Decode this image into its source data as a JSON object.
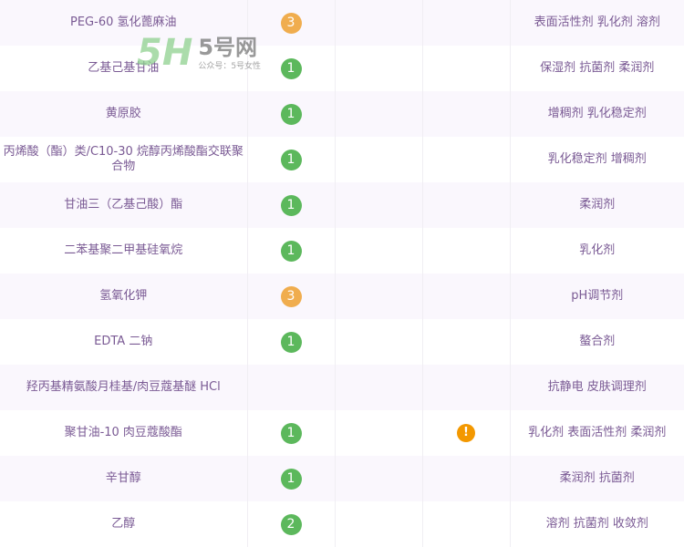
{
  "colors": {
    "score_1": "#5cb85c",
    "score_2": "#5cb85c",
    "score_3": "#f0ad4e",
    "warning": "#f39800",
    "text": "#7a5a94"
  },
  "watermark": {
    "logo": "5H",
    "site": "5号网",
    "sub": "公众号：5号女性"
  },
  "rows": [
    {
      "name": "PEG-60 氢化蓖麻油",
      "score": "3",
      "warn": false,
      "use": "表面活性剂 乳化剂 溶剂"
    },
    {
      "name": "乙基己基甘油",
      "score": "1",
      "warn": false,
      "use": "保湿剂 抗菌剂 柔润剂"
    },
    {
      "name": "黄原胶",
      "score": "1",
      "warn": false,
      "use": "增稠剂 乳化稳定剂"
    },
    {
      "name": "丙烯酸（酯）类/C10-30 烷醇丙烯酸酯交联聚合物",
      "score": "1",
      "warn": false,
      "use": "乳化稳定剂 增稠剂"
    },
    {
      "name": "甘油三（乙基己酸）酯",
      "score": "1",
      "warn": false,
      "use": "柔润剂"
    },
    {
      "name": "二苯基聚二甲基硅氧烷",
      "score": "1",
      "warn": false,
      "use": "乳化剂"
    },
    {
      "name": "氢氧化钾",
      "score": "3",
      "warn": false,
      "use": "pH调节剂"
    },
    {
      "name": "EDTA 二钠",
      "score": "1",
      "warn": false,
      "use": "螯合剂"
    },
    {
      "name": "羟丙基精氨酸月桂基/肉豆蔻基醚 HCl",
      "score": "",
      "warn": false,
      "use": "抗静电 皮肤调理剂"
    },
    {
      "name": "聚甘油-10 肉豆蔻酸酯",
      "score": "1",
      "warn": true,
      "warn_symbol": "!",
      "use": "乳化剂 表面活性剂 柔润剂"
    },
    {
      "name": "辛甘醇",
      "score": "1",
      "warn": false,
      "use": "柔润剂 抗菌剂"
    },
    {
      "name": "乙醇",
      "score": "2",
      "warn": false,
      "use": "溶剂 抗菌剂 收敛剂"
    }
  ]
}
